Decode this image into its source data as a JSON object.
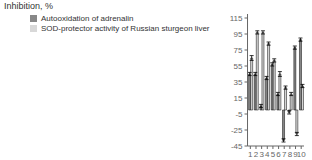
{
  "chart_data": {
    "type": "bar",
    "ylabel": "Inhibition, %",
    "categories": [
      "1",
      "2",
      "3",
      "4",
      "5",
      "6",
      "7",
      "8",
      "9",
      "10"
    ],
    "series": [
      {
        "name": "Autooxidation of adrenalin",
        "color": "#888888",
        "values": [
          45,
          45,
          5,
          40,
          57,
          20,
          -38,
          -3,
          78,
          88
        ],
        "errors": [
          2,
          2,
          2,
          2,
          2,
          2,
          2,
          2,
          2,
          2
        ]
      },
      {
        "name": "SOD-protector activity of Russian sturgeon liver",
        "color": "#d8d8d8",
        "values": [
          65,
          97,
          97,
          83,
          62,
          45,
          28,
          20,
          -30,
          30
        ],
        "errors": [
          3,
          2,
          2,
          2,
          2,
          3,
          2,
          2,
          2,
          2
        ]
      }
    ],
    "ylim": [
      -45,
      120
    ],
    "yticks": [
      -45,
      -25,
      -5,
      15,
      35,
      55,
      75,
      95,
      115
    ],
    "grid": false,
    "legend": "upper left"
  }
}
